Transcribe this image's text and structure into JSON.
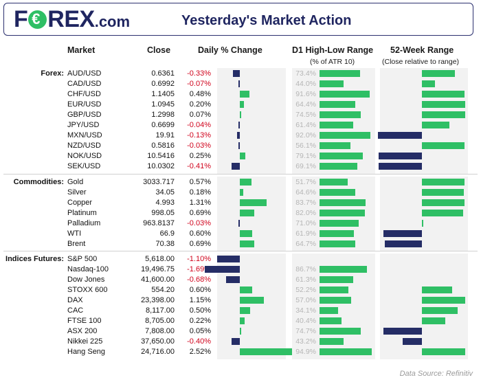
{
  "header": {
    "logo_left": "F",
    "logo_right": "REX",
    "logo_suffix": ".com",
    "title": "Yesterday's Market Action"
  },
  "columns": {
    "market": "Market",
    "close": "Close",
    "daily": "Daily % Change",
    "hilo": "D1 High-Low Range",
    "hilo_sub": "(% of ATR 10)",
    "week52": "52-Week Range",
    "week52_sub": "(Close relative to range)"
  },
  "colors": {
    "positive": "#2fbf65",
    "negative": "#252d66",
    "neg_text": "#d0021b",
    "brand": "#1f2560"
  },
  "source": "Data Source: Refinitiv",
  "chart_data": {
    "type": "table",
    "sections": [
      {
        "label": "Forex:",
        "rows": [
          {
            "market": "AUD/USD",
            "close": "0.6361",
            "pct": "-0.33%",
            "pct_val": -0.33,
            "atr": "73.4%",
            "atr_val": 73.4,
            "w52": 0.75
          },
          {
            "market": "CAD/USD",
            "close": "0.6992",
            "pct": "-0.07%",
            "pct_val": -0.07,
            "atr": "44.0%",
            "atr_val": 44.0,
            "w52": 0.3
          },
          {
            "market": "CHF/USD",
            "close": "1.1405",
            "pct": "0.48%",
            "pct_val": 0.48,
            "atr": "91.6%",
            "atr_val": 91.6,
            "w52": 0.97
          },
          {
            "market": "EUR/USD",
            "close": "1.0945",
            "pct": "0.20%",
            "pct_val": 0.2,
            "atr": "64.4%",
            "atr_val": 64.4,
            "w52": 0.98
          },
          {
            "market": "GBP/USD",
            "close": "1.2998",
            "pct": "0.07%",
            "pct_val": 0.07,
            "atr": "74.5%",
            "atr_val": 74.5,
            "w52": 0.98
          },
          {
            "market": "JPY/USD",
            "close": "0.6699",
            "pct": "-0.04%",
            "pct_val": -0.04,
            "atr": "61.4%",
            "atr_val": 61.4,
            "w52": 0.62
          },
          {
            "market": "MXN/USD",
            "close": "19.91",
            "pct": "-0.13%",
            "pct_val": -0.13,
            "atr": "92.0%",
            "atr_val": 92.0,
            "w52": -1.0
          },
          {
            "market": "NZD/USD",
            "close": "0.5816",
            "pct": "-0.03%",
            "pct_val": -0.03,
            "atr": "56.1%",
            "atr_val": 56.1,
            "w52": 0.97
          },
          {
            "market": "NOK/USD",
            "close": "10.5416",
            "pct": "0.25%",
            "pct_val": 0.25,
            "atr": "79.1%",
            "atr_val": 79.1,
            "w52": -0.98
          },
          {
            "market": "SEK/USD",
            "close": "10.0302",
            "pct": "-0.41%",
            "pct_val": -0.41,
            "atr": "69.1%",
            "atr_val": 69.1,
            "w52": -0.98
          }
        ]
      },
      {
        "label": "Commodities:",
        "rows": [
          {
            "market": "Gold",
            "close": "3033.717",
            "pct": "0.57%",
            "pct_val": 0.57,
            "atr": "51.7%",
            "atr_val": 51.7,
            "w52": 0.97
          },
          {
            "market": "Silver",
            "close": "34.05",
            "pct": "0.18%",
            "pct_val": 0.18,
            "atr": "64.6%",
            "atr_val": 64.6,
            "w52": 0.96
          },
          {
            "market": "Copper",
            "close": "4.993",
            "pct": "1.31%",
            "pct_val": 1.31,
            "atr": "83.7%",
            "atr_val": 83.7,
            "w52": 0.97
          },
          {
            "market": "Platinum",
            "close": "998.05",
            "pct": "0.69%",
            "pct_val": 0.69,
            "atr": "82.0%",
            "atr_val": 82.0,
            "w52": 0.93
          },
          {
            "market": "Palladium",
            "close": "963.8137",
            "pct": "-0.03%",
            "pct_val": -0.03,
            "atr": "71.0%",
            "atr_val": 71.0,
            "w52": 0.03
          },
          {
            "market": "WTI",
            "close": "66.9",
            "pct": "0.60%",
            "pct_val": 0.6,
            "atr": "61.9%",
            "atr_val": 61.9,
            "w52": -0.88
          },
          {
            "market": "Brent",
            "close": "70.38",
            "pct": "0.69%",
            "pct_val": 0.69,
            "atr": "64.7%",
            "atr_val": 64.7,
            "w52": -0.85
          }
        ]
      },
      {
        "label": "Indices Futures:",
        "rows": [
          {
            "market": "S&P 500",
            "close": "5,618.00",
            "pct": "-1.10%",
            "pct_val": -1.1,
            "atr": "",
            "atr_val": 0,
            "w52": 0
          },
          {
            "market": "Nasdaq-100",
            "close": "19,496.75",
            "pct": "-1.69%",
            "pct_val": -1.69,
            "atr": "86.7%",
            "atr_val": 86.7,
            "w52": 0
          },
          {
            "market": "Dow Jones",
            "close": "41,600.00",
            "pct": "-0.68%",
            "pct_val": -0.68,
            "atr": "61.3%",
            "atr_val": 61.3,
            "w52": 0
          },
          {
            "market": "STOXX 600",
            "close": "554.20",
            "pct": "0.60%",
            "pct_val": 0.6,
            "atr": "52.2%",
            "atr_val": 52.2,
            "w52": 0.69
          },
          {
            "market": "DAX",
            "close": "23,398.00",
            "pct": "1.15%",
            "pct_val": 1.15,
            "atr": "57.0%",
            "atr_val": 57.0,
            "w52": 0.98
          },
          {
            "market": "CAC",
            "close": "8,117.00",
            "pct": "0.50%",
            "pct_val": 0.5,
            "atr": "34.1%",
            "atr_val": 34.1,
            "w52": 0.82
          },
          {
            "market": "FTSE 100",
            "close": "8,705.00",
            "pct": "0.22%",
            "pct_val": 0.22,
            "atr": "40.4%",
            "atr_val": 40.4,
            "w52": 0.53
          },
          {
            "market": "ASX 200",
            "close": "7,808.00",
            "pct": "0.05%",
            "pct_val": 0.05,
            "atr": "74.7%",
            "atr_val": 74.7,
            "w52": -0.87
          },
          {
            "market": "Nikkei 225",
            "close": "37,650.00",
            "pct": "-0.40%",
            "pct_val": -0.4,
            "atr": "43.2%",
            "atr_val": 43.2,
            "w52": -0.43
          },
          {
            "market": "Hang Seng",
            "close": "24,716.00",
            "pct": "2.52%",
            "pct_val": 2.52,
            "atr": "94.9%",
            "atr_val": 94.9,
            "w52": 0.98
          }
        ]
      }
    ],
    "daily_range": [
      -2.5,
      2.5
    ],
    "atr_range": [
      0,
      100
    ],
    "w52_range": [
      -1,
      1
    ]
  }
}
